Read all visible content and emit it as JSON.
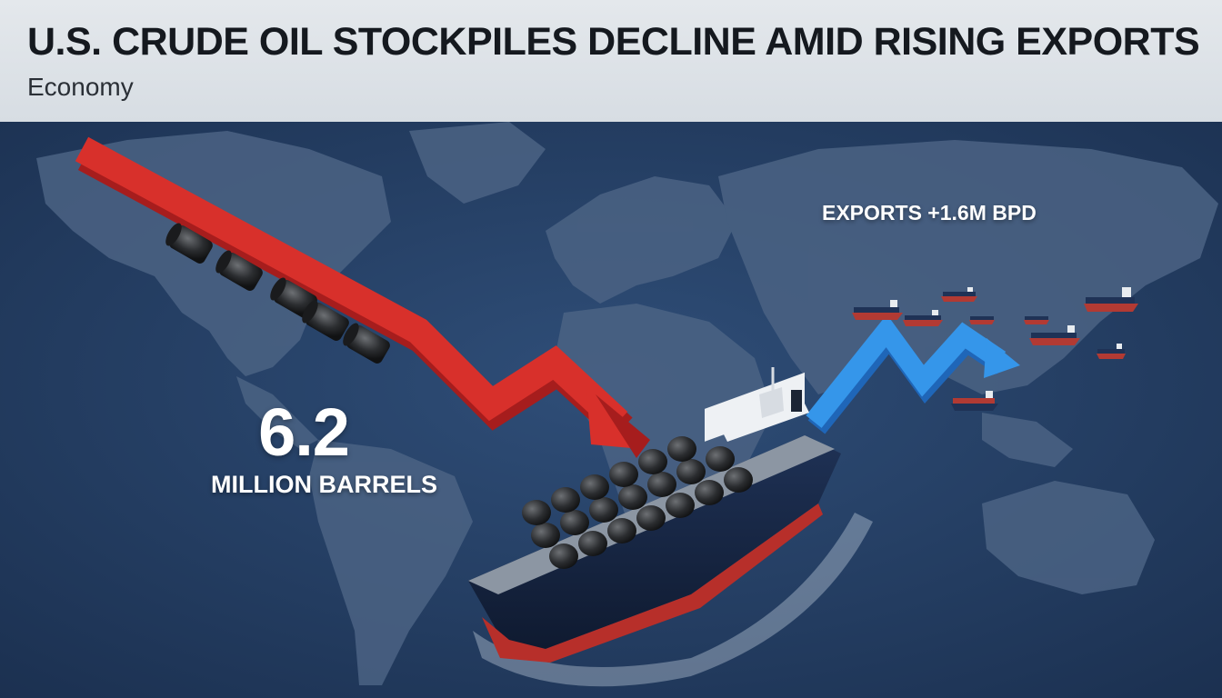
{
  "header": {
    "headline": "U.S. CRUDE OIL STOCKPILES DECLINE AMID RISING EXPORTS",
    "category": "Economy"
  },
  "infographic": {
    "stockpile_change": {
      "value": "6.2",
      "unit": "MILLION BARRELS"
    },
    "exports_label": "EXPORTS +1.6M BPD"
  },
  "colors": {
    "header_background": "#dfe4e9",
    "ocean": "#253f63",
    "land": "#4c6485",
    "decline_arrow": "#d42a2a",
    "exports_arrow": "#2f8fe3"
  },
  "icons": {
    "decline_arrow": "red-down-trend-arrow-icon",
    "exports_arrow": "blue-up-trend-arrow-icon",
    "barrels": "oil-barrel-icon",
    "ship": "oil-tanker-icon"
  }
}
